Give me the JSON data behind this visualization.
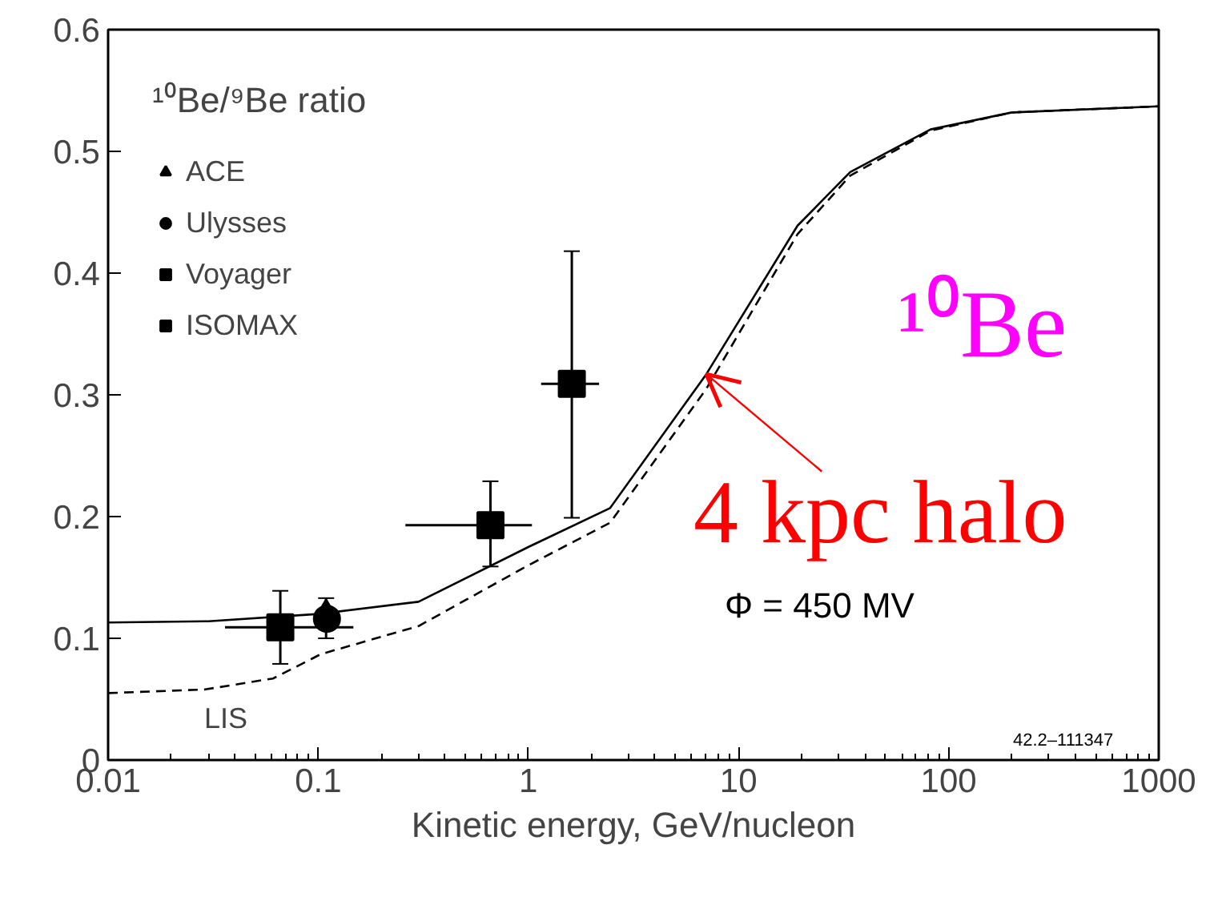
{
  "chart_data": {
    "type": "scatter",
    "xlabel": "Kinetic energy, GeV/nucleon",
    "legend_title": "¹⁰Be/⁹Be ratio",
    "log": "x",
    "xlim": [
      0.01,
      1000
    ],
    "xticks": [
      0.01,
      0.1,
      1,
      10,
      100,
      1000
    ],
    "ylim": [
      0,
      0.6
    ],
    "yticks": [
      0,
      0.1,
      0.2,
      0.3,
      0.4,
      0.5,
      0.6
    ],
    "grid": false,
    "legend": "top left",
    "series": [
      {
        "type": "line",
        "color": "#000000",
        "line_style": "solid",
        "x": [
          0.01,
          0.03,
          0.1,
          0.3,
          1,
          2.45,
          7.03,
          19.1,
          34,
          82,
          200,
          1000
        ],
        "values": [
          0.113,
          0.114,
          0.12,
          0.13,
          0.175,
          0.207,
          0.317,
          0.439,
          0.483,
          0.518,
          0.532,
          0.537
        ]
      },
      {
        "type": "line",
        "name": "LIS",
        "color": "#000000",
        "line_style": "dashed",
        "x": [
          0.01,
          0.029,
          0.061,
          0.103,
          0.3,
          1,
          2.45,
          7.03,
          19.1,
          34,
          82,
          200,
          1000
        ],
        "values": [
          0.055,
          0.058,
          0.067,
          0.087,
          0.11,
          0.16,
          0.195,
          0.305,
          0.432,
          0.48,
          0.517,
          0.532,
          0.537
        ]
      },
      {
        "name": "ACE",
        "marker": "triangle",
        "color": "#000000",
        "x": [
          0.109
        ],
        "values": [
          0.121
        ],
        "errors": [
          [
            0.1,
            0.133
          ]
        ]
      },
      {
        "name": "Ulysses",
        "marker": "circle",
        "color": "#000000",
        "x": [
          0.11
        ],
        "values": [
          0.116
        ]
      },
      {
        "name": "Voyager",
        "marker": "square",
        "color": "#000000",
        "x": [
          0.066
        ],
        "values": [
          0.109
        ],
        "errors": [
          [
            0.079,
            0.139
          ]
        ],
        "xerrors": [
          [
            0.036,
            0.147
          ]
        ]
      },
      {
        "name": "ISOMAX",
        "marker": "square",
        "color": "#000000",
        "x": [
          0.66,
          1.61
        ],
        "values": [
          0.193,
          0.309
        ],
        "errors": [
          [
            0.159,
            0.229
          ],
          [
            0.199,
            0.418
          ]
        ],
        "xerrors": [
          [
            0.26,
            1.04
          ],
          [
            1.15,
            2.17
          ]
        ]
      }
    ],
    "annotations": [
      "¹⁰Be",
      "Φ = 450 MV",
      "42.2–111347",
      {
        "text": "4 kpc halo",
        "x": 7.03,
        "y": 0.317
      }
    ]
  }
}
